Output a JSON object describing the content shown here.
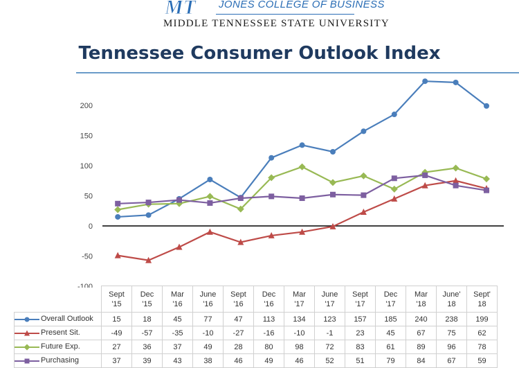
{
  "header": {
    "logo_text": "MT",
    "college": "JONES COLLEGE OF BUSINESS",
    "university": "MIDDLE TENNESSEE STATE UNIVERSITY"
  },
  "chart_data": {
    "type": "line",
    "title": "Tennessee Consumer Outlook Index",
    "categories": [
      "Sept\n'15",
      "Dec\n'15",
      "Mar\n'16",
      "June\n'16",
      "Sept\n'16",
      "Dec\n'16",
      "Mar\n'17",
      "June\n'17",
      "Sept\n'17",
      "Dec\n'17",
      "Mar\n'18",
      "June'\n18",
      "Sept'\n18"
    ],
    "ylim": [
      -100,
      250
    ],
    "yticks": [
      -100,
      -50,
      0,
      50,
      100,
      150,
      200
    ],
    "grid": false,
    "legend": "table",
    "series": [
      {
        "name": "Overall Outlook",
        "color": "#4a7ebb",
        "marker": "circle",
        "values": [
          15,
          18,
          45,
          77,
          47,
          113,
          134,
          123,
          157,
          185,
          240,
          238,
          199
        ]
      },
      {
        "name": "Present Sit.",
        "color": "#be4b48",
        "marker": "triangle",
        "values": [
          -49,
          -57,
          -35,
          -10,
          -27,
          -16,
          -10,
          -1,
          23,
          45,
          67,
          75,
          62
        ]
      },
      {
        "name": "Future Exp.",
        "color": "#98b954",
        "marker": "diamond",
        "values": [
          27,
          36,
          37,
          49,
          28,
          80,
          98,
          72,
          83,
          61,
          89,
          96,
          78
        ]
      },
      {
        "name": "Purchasing",
        "color": "#7d5fa0",
        "marker": "square",
        "values": [
          37,
          39,
          43,
          38,
          46,
          49,
          46,
          52,
          51,
          79,
          84,
          67,
          59
        ]
      }
    ]
  }
}
